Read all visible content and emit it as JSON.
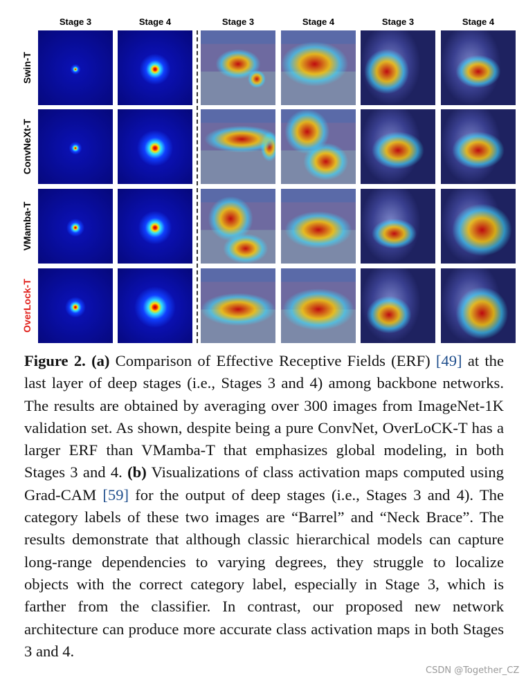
{
  "figure": {
    "columns": [
      "Stage 3",
      "Stage 4",
      "Stage 3",
      "Stage 4",
      "Stage 3",
      "Stage 4"
    ],
    "rows": [
      "Swin-T",
      "ConvNeXt-T",
      "VMamba-T",
      "OverLock-T"
    ],
    "caption": {
      "label": "Figure 2.",
      "part_a": "(a)",
      "text_1": " Comparison of Effective Receptive Fields (ERF) ",
      "ref_1": "[49]",
      "text_2": " at the last layer of deep stages (i.e., Stages 3 and 4) among backbone networks. The results are obtained by averaging over 300 images from ImageNet-1K validation set. As shown, despite being a pure ConvNet, OverLoCK-T has a larger ERF than VMamba-T that emphasizes global modeling, in both Stages 3 and 4. ",
      "part_b": "(b)",
      "text_3": " Visualizations of class activation maps computed using Grad-CAM ",
      "ref_2": "[59]",
      "text_4": " for the output of deep stages (i.e., Stages 3 and 4). The category labels of these two images are “Barrel” and “Neck Brace”. The results demonstrate that although classic hierarchical models can capture long-range dependencies to varying degrees, they struggle to localize objects with the correct category label, especially in Stage 3, which is farther from the classifier. In contrast, our proposed new network architecture can produce more accurate class activation maps in both Stages 3 and 4."
    },
    "watermark": "CSDN @Together_CZ"
  }
}
